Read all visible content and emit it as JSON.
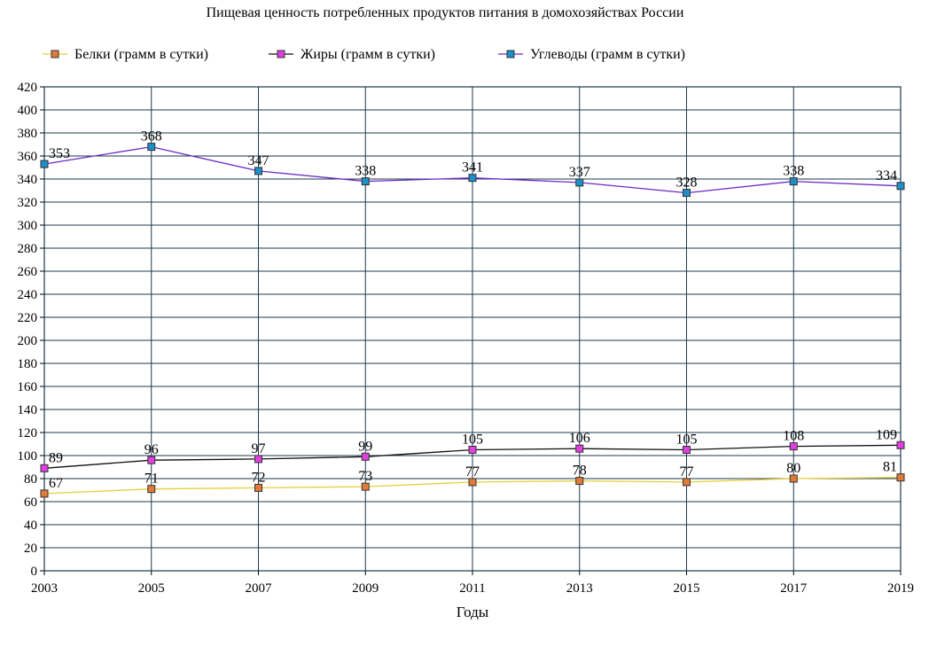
{
  "chart_data": {
    "type": "line",
    "title": "Пищевая ценность потребленных продуктов питания в домохозяйствах России",
    "xlabel": "Годы",
    "ylabel": "",
    "x": [
      "2003",
      "2005",
      "2007",
      "2009",
      "2011",
      "2013",
      "2015",
      "2017",
      "2019"
    ],
    "ylim": [
      0,
      420
    ],
    "ytick_step": 20,
    "grid": true,
    "legend_position": "top",
    "series": [
      {
        "name": "Белки (грамм в сутки)",
        "values": [
          67,
          71,
          72,
          73,
          77,
          78,
          77,
          80,
          81
        ],
        "line_color": "#e8cf3c",
        "marker_color": "#e07b39"
      },
      {
        "name": "Жиры (грамм в сутки)",
        "values": [
          89,
          96,
          97,
          99,
          105,
          106,
          105,
          108,
          109
        ],
        "line_color": "#111111",
        "marker_color": "#e040e0"
      },
      {
        "name": "Углеводы (грамм в сутки)",
        "values": [
          353,
          368,
          347,
          338,
          341,
          337,
          328,
          338,
          334
        ],
        "line_color": "#6a2bc7",
        "marker_color": "#1e8fc9"
      }
    ]
  }
}
